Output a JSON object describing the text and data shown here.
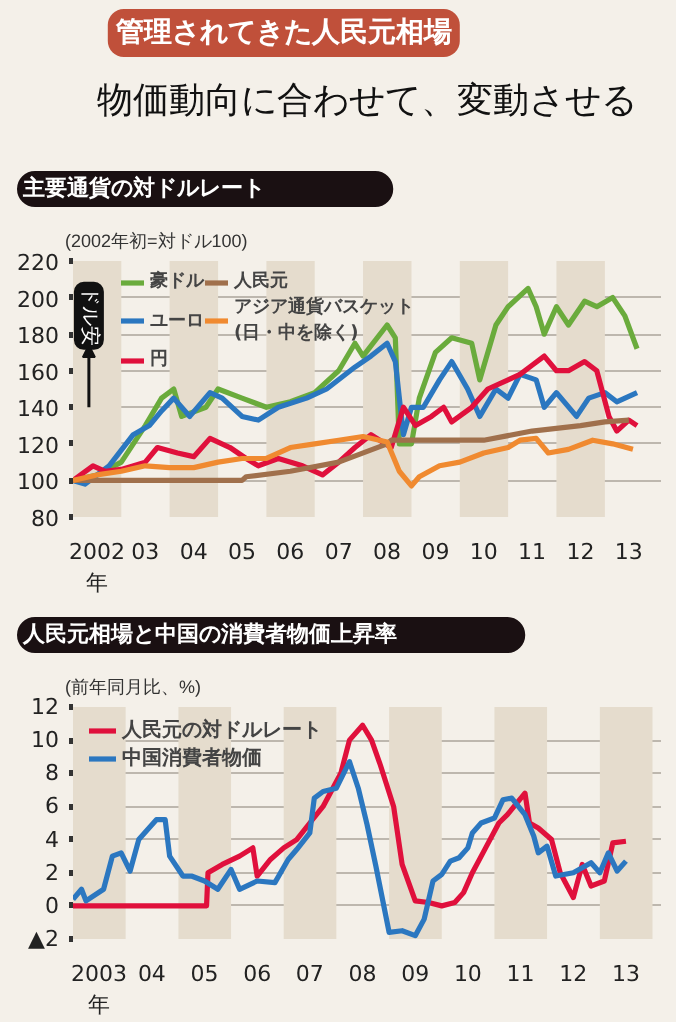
{
  "chart_data": [
    {
      "type": "other",
      "title": "管理されてきた人民元相場",
      "subtitle": "物価動向に合わせて、変動させる"
    },
    {
      "type": "line",
      "title": "主要通貨の対ドルレート",
      "ylabel": "(2002年初=対ドル100)",
      "annotations": [
        {
          "text": "ドル安",
          "x": "2002-05",
          "y": 190
        }
      ],
      "xlim": [
        "2002-01",
        "2014-03"
      ],
      "ylim": [
        80,
        220
      ],
      "yticks": [
        80,
        100,
        120,
        140,
        160,
        180,
        200,
        220
      ],
      "xticks": [
        {
          "value": "2002-07",
          "label": "2002\n年"
        },
        {
          "value": "2003-07",
          "label": "03"
        },
        {
          "value": "2004-07",
          "label": "04"
        },
        {
          "value": "2005-07",
          "label": "05"
        },
        {
          "value": "2006-07",
          "label": "06"
        },
        {
          "value": "2007-07",
          "label": "07"
        },
        {
          "value": "2008-07",
          "label": "08"
        },
        {
          "value": "2009-07",
          "label": "09"
        },
        {
          "value": "2010-07",
          "label": "10"
        },
        {
          "value": "2011-07",
          "label": "11"
        },
        {
          "value": "2012-07",
          "label": "12"
        },
        {
          "value": "2013-07",
          "label": "13"
        }
      ],
      "grid": "y",
      "legend": "top left",
      "bands": [
        {
          "axis": "x",
          "from": "2002",
          "to": "2003",
          "color": "#e5dccd"
        },
        {
          "axis": "x",
          "from": "2004",
          "to": "2005",
          "color": "#e5dccd"
        },
        {
          "axis": "x",
          "from": "2006",
          "to": "2007",
          "color": "#e5dccd"
        },
        {
          "axis": "x",
          "from": "2008",
          "to": "2009",
          "color": "#e5dccd"
        },
        {
          "axis": "x",
          "from": "2010",
          "to": "2011",
          "color": "#e5dccd"
        },
        {
          "axis": "x",
          "from": "2012",
          "to": "2013",
          "color": "#e5dccd"
        }
      ],
      "series": [
        {
          "name": "豪ドル",
          "color": "#6aab3c",
          "x": [
            "2002-01",
            "2002-07",
            "2003-01",
            "2003-07",
            "2003-11",
            "2004-02",
            "2004-04",
            "2004-10",
            "2005-01",
            "2005-07",
            "2006-01",
            "2006-07",
            "2007-01",
            "2007-07",
            "2007-11",
            "2008-01",
            "2008-07",
            "2008-09",
            "2008-10",
            "2009-01",
            "2009-03",
            "2009-07",
            "2009-11",
            "2010-04",
            "2010-06",
            "2010-10",
            "2011-01",
            "2011-06",
            "2011-08",
            "2011-10",
            "2012-01",
            "2012-04",
            "2012-08",
            "2012-11",
            "2013-03",
            "2013-06",
            "2013-09"
          ],
          "values": [
            100,
            103,
            110,
            130,
            145,
            150,
            135,
            140,
            150,
            145,
            140,
            143,
            148,
            160,
            175,
            168,
            185,
            178,
            120,
            120,
            145,
            170,
            178,
            175,
            155,
            185,
            195,
            205,
            195,
            180,
            195,
            185,
            198,
            195,
            200,
            190,
            172
          ]
        },
        {
          "name": "ユーロ",
          "color": "#2b77c0",
          "x": [
            "2002-01",
            "2002-04",
            "2002-10",
            "2003-04",
            "2003-08",
            "2003-11",
            "2004-02",
            "2004-06",
            "2004-11",
            "2005-02",
            "2005-07",
            "2005-11",
            "2006-04",
            "2006-11",
            "2007-04",
            "2007-11",
            "2008-03",
            "2008-07",
            "2008-09",
            "2008-11",
            "2009-01",
            "2009-04",
            "2009-08",
            "2009-11",
            "2010-03",
            "2010-06",
            "2010-10",
            "2011-01",
            "2011-04",
            "2011-08",
            "2011-10",
            "2012-01",
            "2012-06",
            "2012-09",
            "2013-01",
            "2013-04",
            "2013-09"
          ],
          "values": [
            100,
            98,
            108,
            125,
            130,
            138,
            145,
            135,
            148,
            145,
            135,
            133,
            140,
            145,
            150,
            162,
            168,
            175,
            165,
            125,
            140,
            140,
            155,
            165,
            150,
            135,
            150,
            145,
            158,
            155,
            140,
            148,
            135,
            145,
            148,
            143,
            148
          ]
        },
        {
          "name": "円",
          "color": "#e0103c",
          "x": [
            "2002-01",
            "2002-06",
            "2002-09",
            "2003-01",
            "2003-07",
            "2003-10",
            "2004-03",
            "2004-07",
            "2004-11",
            "2005-04",
            "2005-08",
            "2005-11",
            "2006-04",
            "2006-10",
            "2007-03",
            "2007-07",
            "2007-11",
            "2008-03",
            "2008-08",
            "2008-11",
            "2009-02",
            "2009-06",
            "2009-09",
            "2009-11",
            "2010-04",
            "2010-08",
            "2011-01",
            "2011-04",
            "2011-07",
            "2011-10",
            "2012-01",
            "2012-04",
            "2012-08",
            "2012-11",
            "2013-02",
            "2013-04",
            "2013-07",
            "2013-09"
          ],
          "values": [
            100,
            108,
            105,
            106,
            110,
            118,
            115,
            113,
            123,
            118,
            112,
            108,
            112,
            108,
            103,
            110,
            118,
            125,
            118,
            140,
            130,
            135,
            140,
            132,
            140,
            150,
            155,
            158,
            163,
            168,
            160,
            160,
            165,
            160,
            135,
            127,
            133,
            130
          ]
        },
        {
          "name": "人民元",
          "color": "#a0704c",
          "x": [
            "2002-01",
            "2005-07",
            "2005-08",
            "2006-07",
            "2007-07",
            "2008-07",
            "2008-08",
            "2010-07",
            "2011-07",
            "2012-07",
            "2013-01",
            "2013-07"
          ],
          "values": [
            100,
            100,
            102,
            105,
            110,
            120,
            122,
            122,
            127,
            130,
            132,
            133
          ]
        },
        {
          "name": "アジア通貨バスケット\n(日・中を除く)",
          "color": "#f08a30",
          "x": [
            "2002-01",
            "2002-07",
            "2003-01",
            "2003-07",
            "2004-01",
            "2004-07",
            "2005-01",
            "2005-07",
            "2006-01",
            "2006-07",
            "2007-01",
            "2007-07",
            "2008-01",
            "2008-07",
            "2008-10",
            "2009-01",
            "2009-03",
            "2009-08",
            "2010-01",
            "2010-07",
            "2011-01",
            "2011-04",
            "2011-08",
            "2011-11",
            "2012-04",
            "2012-10",
            "2013-03",
            "2013-08"
          ],
          "values": [
            100,
            103,
            105,
            108,
            107,
            107,
            110,
            112,
            112,
            118,
            120,
            122,
            124,
            121,
            105,
            97,
            102,
            108,
            110,
            115,
            118,
            122,
            123,
            115,
            117,
            122,
            120,
            117
          ]
        }
      ]
    },
    {
      "type": "line",
      "title": "人民元相場と中国の消費者物価上昇率",
      "ylabel": "(前年同月比、%)",
      "xlim": [
        "2003-01",
        "2014-03"
      ],
      "ylim": [
        -2,
        12
      ],
      "yticks": [
        {
          "value": -2,
          "label": "▲2"
        },
        0,
        2,
        4,
        6,
        8,
        10,
        12
      ],
      "xticks": [
        {
          "value": "2003-07",
          "label": "2003\n年"
        },
        {
          "value": "2004-07",
          "label": "04"
        },
        {
          "value": "2005-07",
          "label": "05"
        },
        {
          "value": "2006-07",
          "label": "06"
        },
        {
          "value": "2007-07",
          "label": "07"
        },
        {
          "value": "2008-07",
          "label": "08"
        },
        {
          "value": "2009-07",
          "label": "09"
        },
        {
          "value": "2010-07",
          "label": "10"
        },
        {
          "value": "2011-07",
          "label": "11"
        },
        {
          "value": "2012-07",
          "label": "12"
        },
        {
          "value": "2013-07",
          "label": "13"
        }
      ],
      "grid": "y",
      "legend": "top left",
      "bands": [
        {
          "axis": "x",
          "from": "2003",
          "to": "2004",
          "color": "#e5dccd"
        },
        {
          "axis": "x",
          "from": "2005",
          "to": "2006",
          "color": "#e5dccd"
        },
        {
          "axis": "x",
          "from": "2007",
          "to": "2008",
          "color": "#e5dccd"
        },
        {
          "axis": "x",
          "from": "2009",
          "to": "2010",
          "color": "#e5dccd"
        },
        {
          "axis": "x",
          "from": "2011",
          "to": "2012",
          "color": "#e5dccd"
        },
        {
          "axis": "x",
          "from": "2013",
          "to": "2014",
          "color": "#e5dccd"
        }
      ],
      "series": [
        {
          "name": "人民元の対ドルレート",
          "color": "#e0103c",
          "x": [
            "2003-01",
            "2005-07-15",
            "2005-07-25",
            "2005-11",
            "2006-03",
            "2006-06",
            "2006-07",
            "2006-10",
            "2007-01",
            "2007-04",
            "2007-07",
            "2007-10",
            "2008-02",
            "2008-04",
            "2008-07",
            "2008-09",
            "2008-11",
            "2009-02",
            "2009-04",
            "2009-07",
            "2009-10",
            "2010-01",
            "2010-04",
            "2010-06",
            "2010-08",
            "2010-11",
            "2011-02",
            "2011-04",
            "2011-08",
            "2011-09",
            "2011-11",
            "2012-02",
            "2012-04",
            "2012-07",
            "2012-09",
            "2012-11",
            "2013-02",
            "2013-04",
            "2013-07"
          ],
          "values": [
            0,
            0,
            2,
            2.5,
            3,
            3.5,
            1.8,
            2.8,
            3.5,
            4,
            5,
            6,
            8,
            10,
            10.9,
            10,
            8.5,
            6,
            2.5,
            0.3,
            0.2,
            0,
            0.2,
            0.8,
            2,
            3.5,
            5,
            5.5,
            6.8,
            5,
            4.7,
            4,
            2,
            0.5,
            2.5,
            1.2,
            1.5,
            3.8,
            3.9
          ]
        },
        {
          "name": "中国消費者物価",
          "color": "#2b77c0",
          "x": [
            "2003-01",
            "2003-03",
            "2003-04",
            "2003-08",
            "2003-10",
            "2003-12",
            "2004-02",
            "2004-04",
            "2004-08",
            "2004-10",
            "2004-11",
            "2005-02",
            "2005-04",
            "2005-07",
            "2005-10",
            "2006-01",
            "2006-03",
            "2006-07",
            "2006-11",
            "2007-02",
            "2007-04",
            "2007-07",
            "2007-08",
            "2007-10",
            "2008-01",
            "2008-04",
            "2008-06",
            "2008-08",
            "2008-10",
            "2009-01",
            "2009-04",
            "2009-07",
            "2009-09",
            "2009-11",
            "2010-01",
            "2010-03",
            "2010-05",
            "2010-07",
            "2010-08",
            "2010-10",
            "2011-01",
            "2011-03",
            "2011-05",
            "2011-08",
            "2011-10",
            "2011-11",
            "2012-01",
            "2012-03",
            "2012-07",
            "2012-11",
            "2013-01",
            "2013-03",
            "2013-05",
            "2013-07"
          ],
          "values": [
            0.4,
            1,
            0.3,
            1,
            3,
            3.2,
            2.1,
            4,
            5.2,
            5.2,
            3,
            1.8,
            1.8,
            1.5,
            1,
            2.2,
            1,
            1.5,
            1.4,
            2.8,
            3.4,
            4.4,
            6.5,
            6.9,
            7.1,
            8.7,
            7.1,
            4.9,
            2.4,
            -1.6,
            -1.5,
            -1.8,
            -0.8,
            1.5,
            1.9,
            2.7,
            2.9,
            3.5,
            4.4,
            5,
            5.3,
            6.4,
            6.5,
            5.5,
            4.2,
            3.2,
            3.6,
            1.8,
            2.0,
            2.6,
            2,
            3.2,
            2.1,
            2.7
          ]
        }
      ]
    }
  ]
}
